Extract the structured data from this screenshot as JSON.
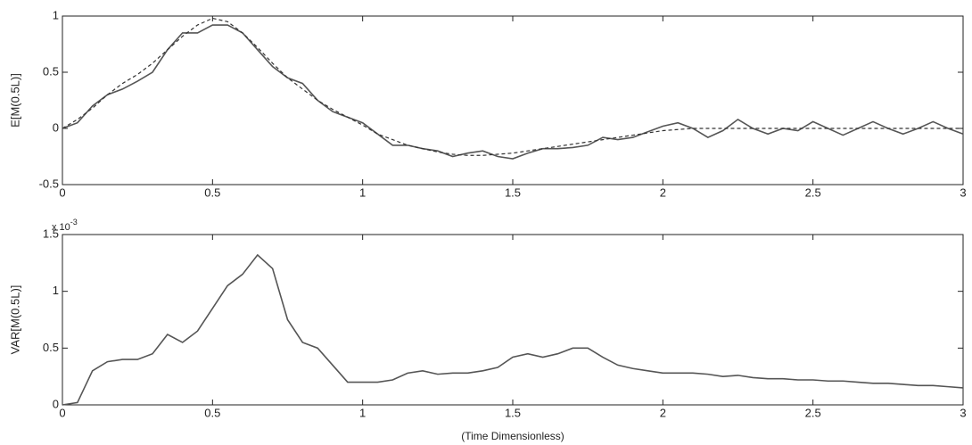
{
  "chart_data": [
    {
      "type": "line",
      "ylabel": "E[M(0.5L)]",
      "x": [
        0,
        0.05,
        0.1,
        0.15,
        0.2,
        0.25,
        0.3,
        0.35,
        0.4,
        0.45,
        0.5,
        0.55,
        0.6,
        0.65,
        0.7,
        0.75,
        0.8,
        0.85,
        0.9,
        0.95,
        1,
        1.05,
        1.1,
        1.15,
        1.2,
        1.25,
        1.3,
        1.35,
        1.4,
        1.45,
        1.5,
        1.55,
        1.6,
        1.65,
        1.7,
        1.75,
        1.8,
        1.85,
        1.9,
        1.95,
        2,
        2.05,
        2.1,
        2.15,
        2.2,
        2.25,
        2.3,
        2.35,
        2.4,
        2.45,
        2.5,
        2.55,
        2.6,
        2.65,
        2.7,
        2.75,
        2.8,
        2.85,
        2.9,
        2.95,
        3
      ],
      "series": [
        {
          "color": "#555555",
          "style": "solid",
          "values": [
            0,
            0.05,
            0.2,
            0.3,
            0.35,
            0.42,
            0.5,
            0.7,
            0.85,
            0.85,
            0.92,
            0.92,
            0.85,
            0.7,
            0.55,
            0.45,
            0.4,
            0.25,
            0.15,
            0.1,
            0.05,
            -0.05,
            -0.15,
            -0.15,
            -0.18,
            -0.2,
            -0.25,
            -0.22,
            -0.2,
            -0.25,
            -0.27,
            -0.22,
            -0.18,
            -0.18,
            -0.17,
            -0.15,
            -0.08,
            -0.1,
            -0.08,
            -0.03,
            0.02,
            0.05,
            0,
            -0.08,
            -0.02,
            0.08,
            0,
            -0.05,
            0,
            -0.02,
            0.06,
            0,
            -0.06,
            0,
            0.06,
            0,
            -0.05,
            0,
            0.06,
            0,
            -0.05
          ]
        },
        {
          "color": "#333333",
          "style": "dashed",
          "values": [
            0,
            0.08,
            0.18,
            0.3,
            0.4,
            0.48,
            0.58,
            0.7,
            0.82,
            0.92,
            0.98,
            0.95,
            0.85,
            0.72,
            0.58,
            0.45,
            0.35,
            0.25,
            0.17,
            0.1,
            0.03,
            -0.05,
            -0.1,
            -0.15,
            -0.18,
            -0.21,
            -0.23,
            -0.24,
            -0.24,
            -0.23,
            -0.22,
            -0.2,
            -0.18,
            -0.16,
            -0.14,
            -0.12,
            -0.1,
            -0.08,
            -0.06,
            -0.04,
            -0.02,
            -0.01,
            0,
            0,
            0,
            0,
            0,
            0,
            0,
            0,
            0,
            0,
            0,
            0,
            0,
            0,
            0,
            0,
            0,
            0,
            0
          ]
        }
      ],
      "xlim": [
        0,
        3
      ],
      "ylim": [
        -0.5,
        1
      ],
      "xticks": [
        0,
        0.5,
        1,
        1.5,
        2,
        2.5,
        3
      ],
      "yticks": [
        -0.5,
        0,
        0.5,
        1
      ]
    },
    {
      "type": "line",
      "ylabel": "VAR[M(0.5L)]",
      "xlabel": "(Time Dimensionless)",
      "y_multiplier": {
        "base": "x 10",
        "exponent": "-3"
      },
      "x": [
        0,
        0.05,
        0.1,
        0.15,
        0.2,
        0.25,
        0.3,
        0.35,
        0.4,
        0.45,
        0.5,
        0.55,
        0.6,
        0.65,
        0.7,
        0.75,
        0.8,
        0.85,
        0.9,
        0.95,
        1,
        1.05,
        1.1,
        1.15,
        1.2,
        1.25,
        1.3,
        1.35,
        1.4,
        1.45,
        1.5,
        1.55,
        1.6,
        1.65,
        1.7,
        1.75,
        1.8,
        1.85,
        1.9,
        1.95,
        2,
        2.05,
        2.1,
        2.15,
        2.2,
        2.25,
        2.3,
        2.35,
        2.4,
        2.45,
        2.5,
        2.55,
        2.6,
        2.65,
        2.7,
        2.75,
        2.8,
        2.85,
        2.9,
        2.95,
        3
      ],
      "series": [
        {
          "color": "#555555",
          "style": "solid",
          "values": [
            0,
            0.02,
            0.3,
            0.38,
            0.4,
            0.4,
            0.45,
            0.62,
            0.55,
            0.65,
            0.85,
            1.05,
            1.15,
            1.32,
            1.2,
            0.75,
            0.55,
            0.5,
            0.35,
            0.2,
            0.2,
            0.2,
            0.22,
            0.28,
            0.3,
            0.27,
            0.28,
            0.28,
            0.3,
            0.33,
            0.42,
            0.45,
            0.42,
            0.45,
            0.5,
            0.5,
            0.42,
            0.35,
            0.32,
            0.3,
            0.28,
            0.28,
            0.28,
            0.27,
            0.25,
            0.26,
            0.24,
            0.23,
            0.23,
            0.22,
            0.22,
            0.21,
            0.21,
            0.2,
            0.19,
            0.19,
            0.18,
            0.17,
            0.17,
            0.16,
            0.15
          ]
        }
      ],
      "xlim": [
        0,
        3
      ],
      "ylim": [
        0,
        1.5
      ],
      "xticks": [
        0,
        0.5,
        1,
        1.5,
        2,
        2.5,
        3
      ],
      "yticks": [
        0,
        0.5,
        1,
        1.5
      ]
    }
  ]
}
